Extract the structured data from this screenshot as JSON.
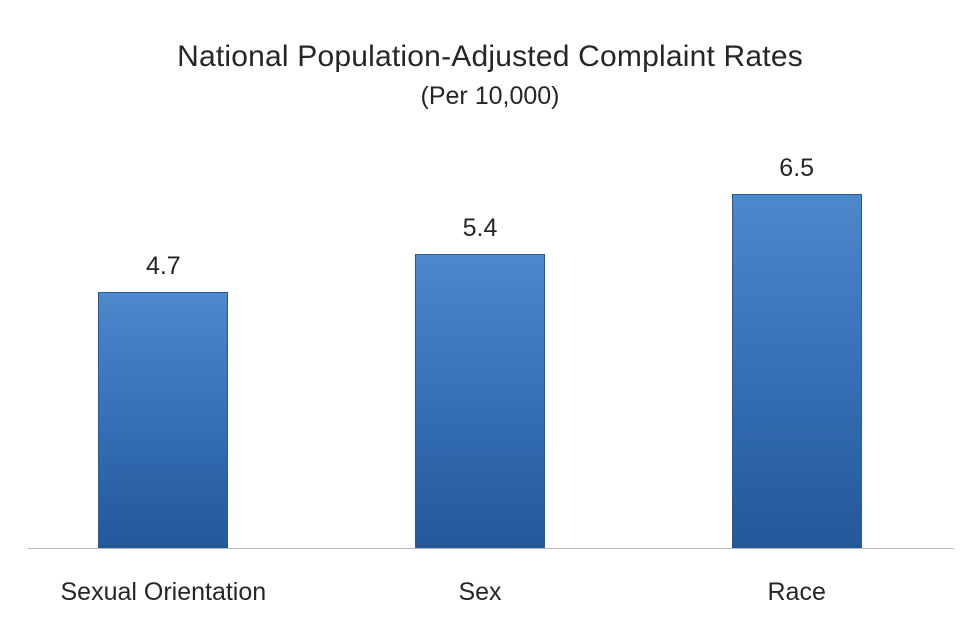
{
  "chart_data": {
    "type": "bar",
    "title": "National Population-Adjusted Complaint Rates",
    "subtitle": "(Per 10,000)",
    "categories": [
      "Sexual Orientation",
      "Sex",
      "Race"
    ],
    "values": [
      4.7,
      5.4,
      6.5
    ],
    "value_labels": [
      "4.7",
      "5.4",
      "6.5"
    ],
    "xlabel": "",
    "ylabel": "",
    "ylim": [
      0,
      7
    ],
    "grid": false,
    "legend": false,
    "colors": {
      "bar_top": "#4c88cc",
      "bar_mid": "#3a74bc",
      "bar_bottom": "#235899",
      "bar_border": "#275a9b",
      "axis_line": "#b9b9b9",
      "text": "#262626",
      "background": "#ffffff"
    }
  }
}
